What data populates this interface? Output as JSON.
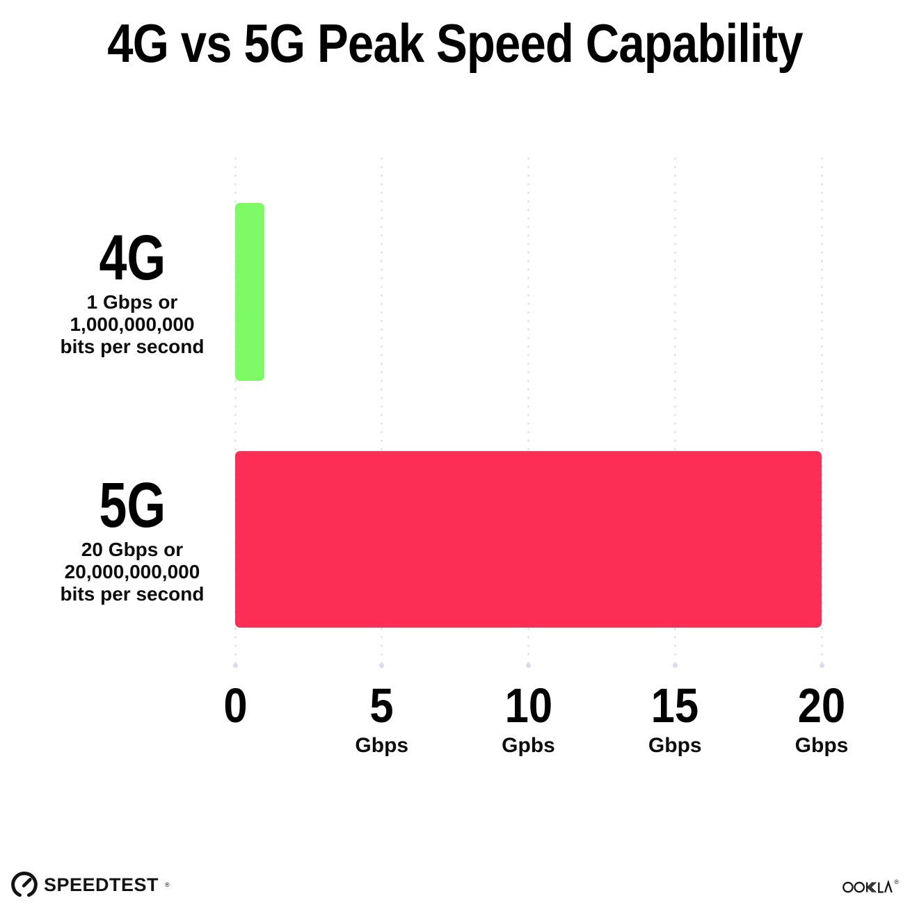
{
  "title": "4G vs 5G Peak Speed Capability",
  "chart_data": {
    "type": "bar",
    "orientation": "horizontal",
    "title": "4G vs 5G Peak Speed Capability",
    "xlim": [
      0,
      20
    ],
    "grid": "vertical-dotted-lines",
    "legend": "none",
    "categories": [
      "4G",
      "5G"
    ],
    "values": [
      1,
      20
    ],
    "value_unit": "Gbps",
    "rows": [
      {
        "label": "4G",
        "desc_lines": [
          "1 Gbps or",
          "1,000,000,000",
          "bits per second"
        ],
        "value": 1,
        "color": "#7EFA66"
      },
      {
        "label": "5G",
        "desc_lines": [
          "20 Gbps or",
          "20,000,000,000",
          "bits per second"
        ],
        "value": 20,
        "color": "#FD2E56"
      }
    ],
    "x_ticks": [
      {
        "value": "0",
        "unit": ""
      },
      {
        "value": "5",
        "unit": "Gbps"
      },
      {
        "value": "10",
        "unit": "Gpbs"
      },
      {
        "value": "15",
        "unit": "Gbps"
      },
      {
        "value": "20",
        "unit": "Gbps"
      }
    ]
  },
  "colors": {
    "bar_4g": "#7EFA66",
    "bar_5g": "#FD2E56",
    "grid_dot": "#DFE1EE",
    "text": "#0D0D0D"
  },
  "footer": {
    "speedtest_label": "SPEEDTEST",
    "speedtest_trademark": "®",
    "ookla_label": "OOKLA",
    "ookla_trademark": "®"
  }
}
